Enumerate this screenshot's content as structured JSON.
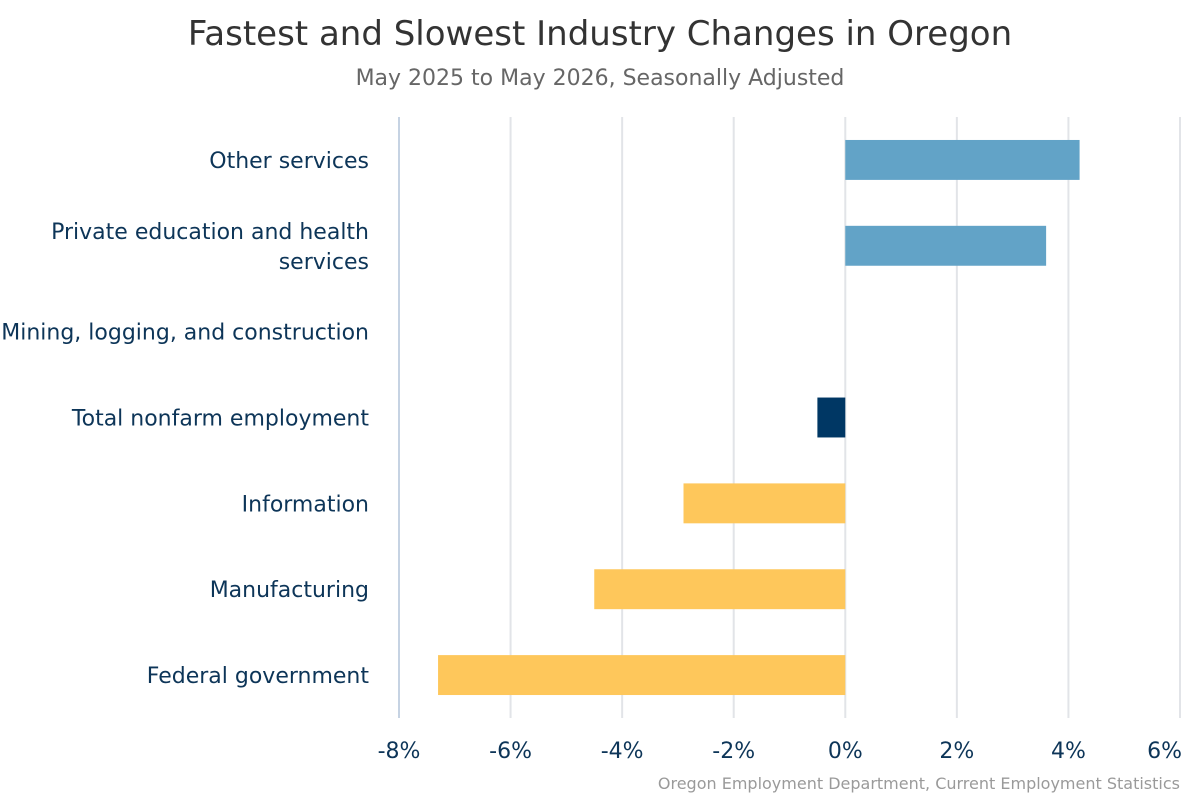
{
  "chart_data": {
    "type": "bar",
    "orientation": "horizontal",
    "title": "Fastest and Slowest Industry Changes in Oregon",
    "subtitle": "May 2025 to May 2026, Seasonally Adjusted",
    "source": "Oregon Employment Department, Current Employment Statistics",
    "xlabel": "",
    "ylabel": "",
    "xlim": [
      -8,
      6
    ],
    "grid": true,
    "categories": [
      "Other services",
      "Private education and health services",
      "Mining, logging, and construction",
      "Total nonfarm employment",
      "Information",
      "Manufacturing",
      "Federal government"
    ],
    "category_lines": [
      [
        "Other services"
      ],
      [
        "Private education and health",
        "services"
      ],
      [
        "Mining, logging, and construction"
      ],
      [
        "Total nonfarm employment"
      ],
      [
        "Information"
      ],
      [
        "Manufacturing"
      ],
      [
        "Federal government"
      ]
    ],
    "values": [
      4.2,
      3.6,
      0.0,
      -0.5,
      -2.9,
      -4.5,
      -7.3
    ],
    "bar_colors": [
      "#62a3c7",
      "#62a3c7",
      "#62a3c7",
      "#003764",
      "#fec75b",
      "#fec75b",
      "#fec75b"
    ],
    "ticks": [
      -8,
      -6,
      -4,
      -2,
      0,
      2,
      4,
      6
    ],
    "tick_labels": [
      "-8%",
      "-6%",
      "-4%",
      "-2%",
      "0%",
      "2%",
      "4%",
      "6%"
    ]
  }
}
